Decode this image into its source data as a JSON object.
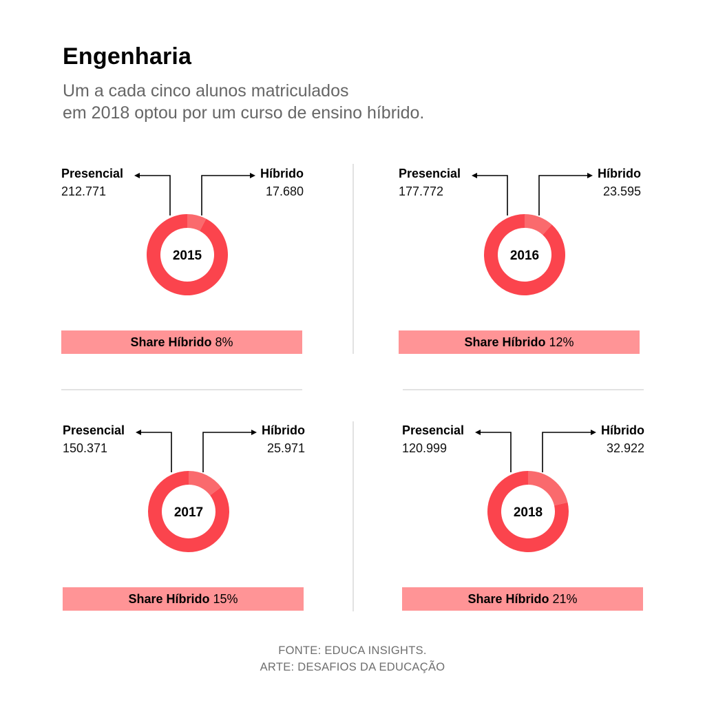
{
  "header": {
    "title": "Engenharia",
    "subtitle_line1": "Um a cada cinco alunos matriculados",
    "subtitle_line2": "em 2018 optou por um curso de ensino híbrido."
  },
  "colors": {
    "presencial": "#fb444d",
    "hibrido": "#fa6a6d",
    "share_bar": "#ff9496",
    "arrow": "#000000"
  },
  "labels": {
    "presencial": "Presencial",
    "hibrido": "Híbrido",
    "share": "Share Híbrido"
  },
  "chart_data": [
    {
      "type": "pie",
      "year": "2015",
      "presencial": "212.771",
      "hibrido": "17.680",
      "values": [
        212771,
        17680
      ],
      "share": "8%"
    },
    {
      "type": "pie",
      "year": "2016",
      "presencial": "177.772",
      "hibrido": "23.595",
      "values": [
        177772,
        23595
      ],
      "share": "12%"
    },
    {
      "type": "pie",
      "year": "2017",
      "presencial": "150.371",
      "hibrido": "25.971",
      "values": [
        150371,
        25971
      ],
      "share": "15%"
    },
    {
      "type": "pie",
      "year": "2018",
      "presencial": "120.999",
      "hibrido": "32.922",
      "values": [
        120999,
        32922
      ],
      "share": "21%"
    }
  ],
  "footer": {
    "source": "FONTE: EDUCA INSIGHTS.",
    "art": "ARTE: DESAFIOS DA EDUCAÇÃO"
  }
}
